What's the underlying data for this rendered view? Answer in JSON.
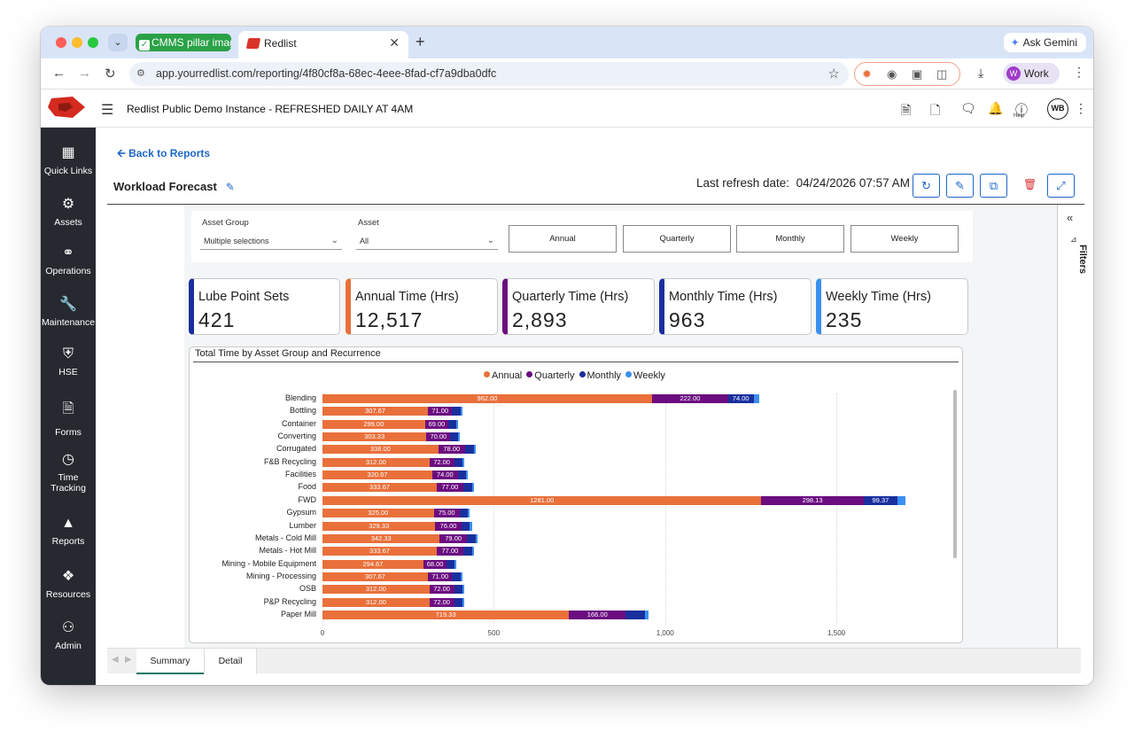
{
  "browser": {
    "tabs": [
      {
        "label": "CMMS pillar image"
      },
      {
        "label": "Redlist"
      }
    ],
    "gemini_label": "Ask Gemini",
    "url": "app.yourredlist.com/reporting/4f80cf8a-68ec-4eee-8fad-cf7a9dba0dfc",
    "profile_label": "Work",
    "profile_initial": "W"
  },
  "app": {
    "title": "Redlist Public Demo Instance - REFRESHED DAILY AT 4AM",
    "user_initials": "WB",
    "help_label": "Help"
  },
  "sidebar": {
    "items": [
      {
        "label": "Quick Links",
        "icon": "grid-icon"
      },
      {
        "label": "Assets",
        "icon": "gears-icon"
      },
      {
        "label": "Operations",
        "icon": "dollar-cycle-icon"
      },
      {
        "label": "Maintenance",
        "icon": "wrench-icon"
      },
      {
        "label": "HSE",
        "icon": "shield-icon"
      },
      {
        "label": "Forms",
        "icon": "document-icon"
      },
      {
        "label": "Time Tracking",
        "icon": "clock-icon"
      },
      {
        "label": "Reports",
        "icon": "area-chart-icon"
      },
      {
        "label": "Resources",
        "icon": "cubes-icon"
      },
      {
        "label": "Admin",
        "icon": "users-icon"
      }
    ]
  },
  "report": {
    "back_label": "Back to Reports",
    "title": "Workload Forecast",
    "refresh_label": "Last refresh date:",
    "refresh_value": "04/24/2026 07:57 AM",
    "filters_label": "Filters"
  },
  "slicers": {
    "asset_group_label": "Asset Group",
    "asset_group_value": "Multiple selections",
    "asset_label": "Asset",
    "asset_value": "All",
    "frequency_buttons": [
      "Annual",
      "Quarterly",
      "Monthly",
      "Weekly"
    ]
  },
  "cards": [
    {
      "label": "Lube Point Sets",
      "value": "421",
      "color": "#1a2f9e"
    },
    {
      "label": "Annual Time (Hrs)",
      "value": "12,517",
      "color": "#e9703b"
    },
    {
      "label": "Quarterly Time (Hrs)",
      "value": "2,893",
      "color": "#6b0d80"
    },
    {
      "label": "Monthly Time (Hrs)",
      "value": "963",
      "color": "#1a2f9e"
    },
    {
      "label": "Weekly Time (Hrs)",
      "value": "235",
      "color": "#3a8ff0"
    }
  ],
  "chart_data": {
    "type": "bar",
    "orientation": "horizontal",
    "stacked": true,
    "title": "Total Time by Asset Group and Recurrence",
    "categories": [
      "Blending",
      "Bottling",
      "Container",
      "Converting",
      "Corrugated",
      "F&B Recycling",
      "Facilities",
      "Food",
      "FWD",
      "Gypsum",
      "Lumber",
      "Metals - Cold Mill",
      "Metals - Hot Mill",
      "Mining - Mobile Equipment",
      "Mining - Processing",
      "OSB",
      "P&P Recycling",
      "Paper Mill"
    ],
    "series": [
      {
        "name": "Annual",
        "color": "#e9703b",
        "values": [
          962.0,
          307.67,
          299.0,
          303.33,
          338.0,
          312.0,
          320.67,
          333.67,
          1281.0,
          325.0,
          329.33,
          342.33,
          333.67,
          294.67,
          307.67,
          312.0,
          312.0,
          719.33
        ]
      },
      {
        "name": "Quarterly",
        "color": "#6b0d80",
        "values": [
          222.0,
          71.0,
          69.0,
          70.0,
          78.0,
          72.0,
          74.0,
          77.0,
          298.13,
          75.0,
          76.0,
          79.0,
          77.0,
          68.0,
          71.0,
          72.0,
          72.0,
          166.0
        ]
      },
      {
        "name": "Monthly",
        "color": "#1a2f9e",
        "values": [
          74.0,
          24,
          23,
          23,
          26,
          24,
          25,
          26,
          99.37,
          25,
          25,
          26,
          26,
          23,
          24,
          24,
          24,
          55
        ]
      },
      {
        "name": "Weekly",
        "color": "#3a8ff0",
        "values": [
          18,
          5,
          5,
          5,
          6,
          5,
          5,
          6,
          22,
          5,
          6,
          6,
          6,
          5,
          5,
          5,
          5,
          12
        ]
      }
    ],
    "labeled_values": {
      "Annual": true,
      "Quarterly": true,
      "Monthly_labels": {
        "Blending": "74.00",
        "FWD": "99.37"
      }
    },
    "xlim": [
      0,
      1810
    ],
    "xticks": [
      0,
      500,
      1000,
      1500
    ],
    "xtick_labels": [
      "0",
      "500",
      "1,000",
      "1,500"
    ],
    "legend_position": "top-center"
  },
  "bottom_tabs": [
    "Summary",
    "Detail"
  ]
}
